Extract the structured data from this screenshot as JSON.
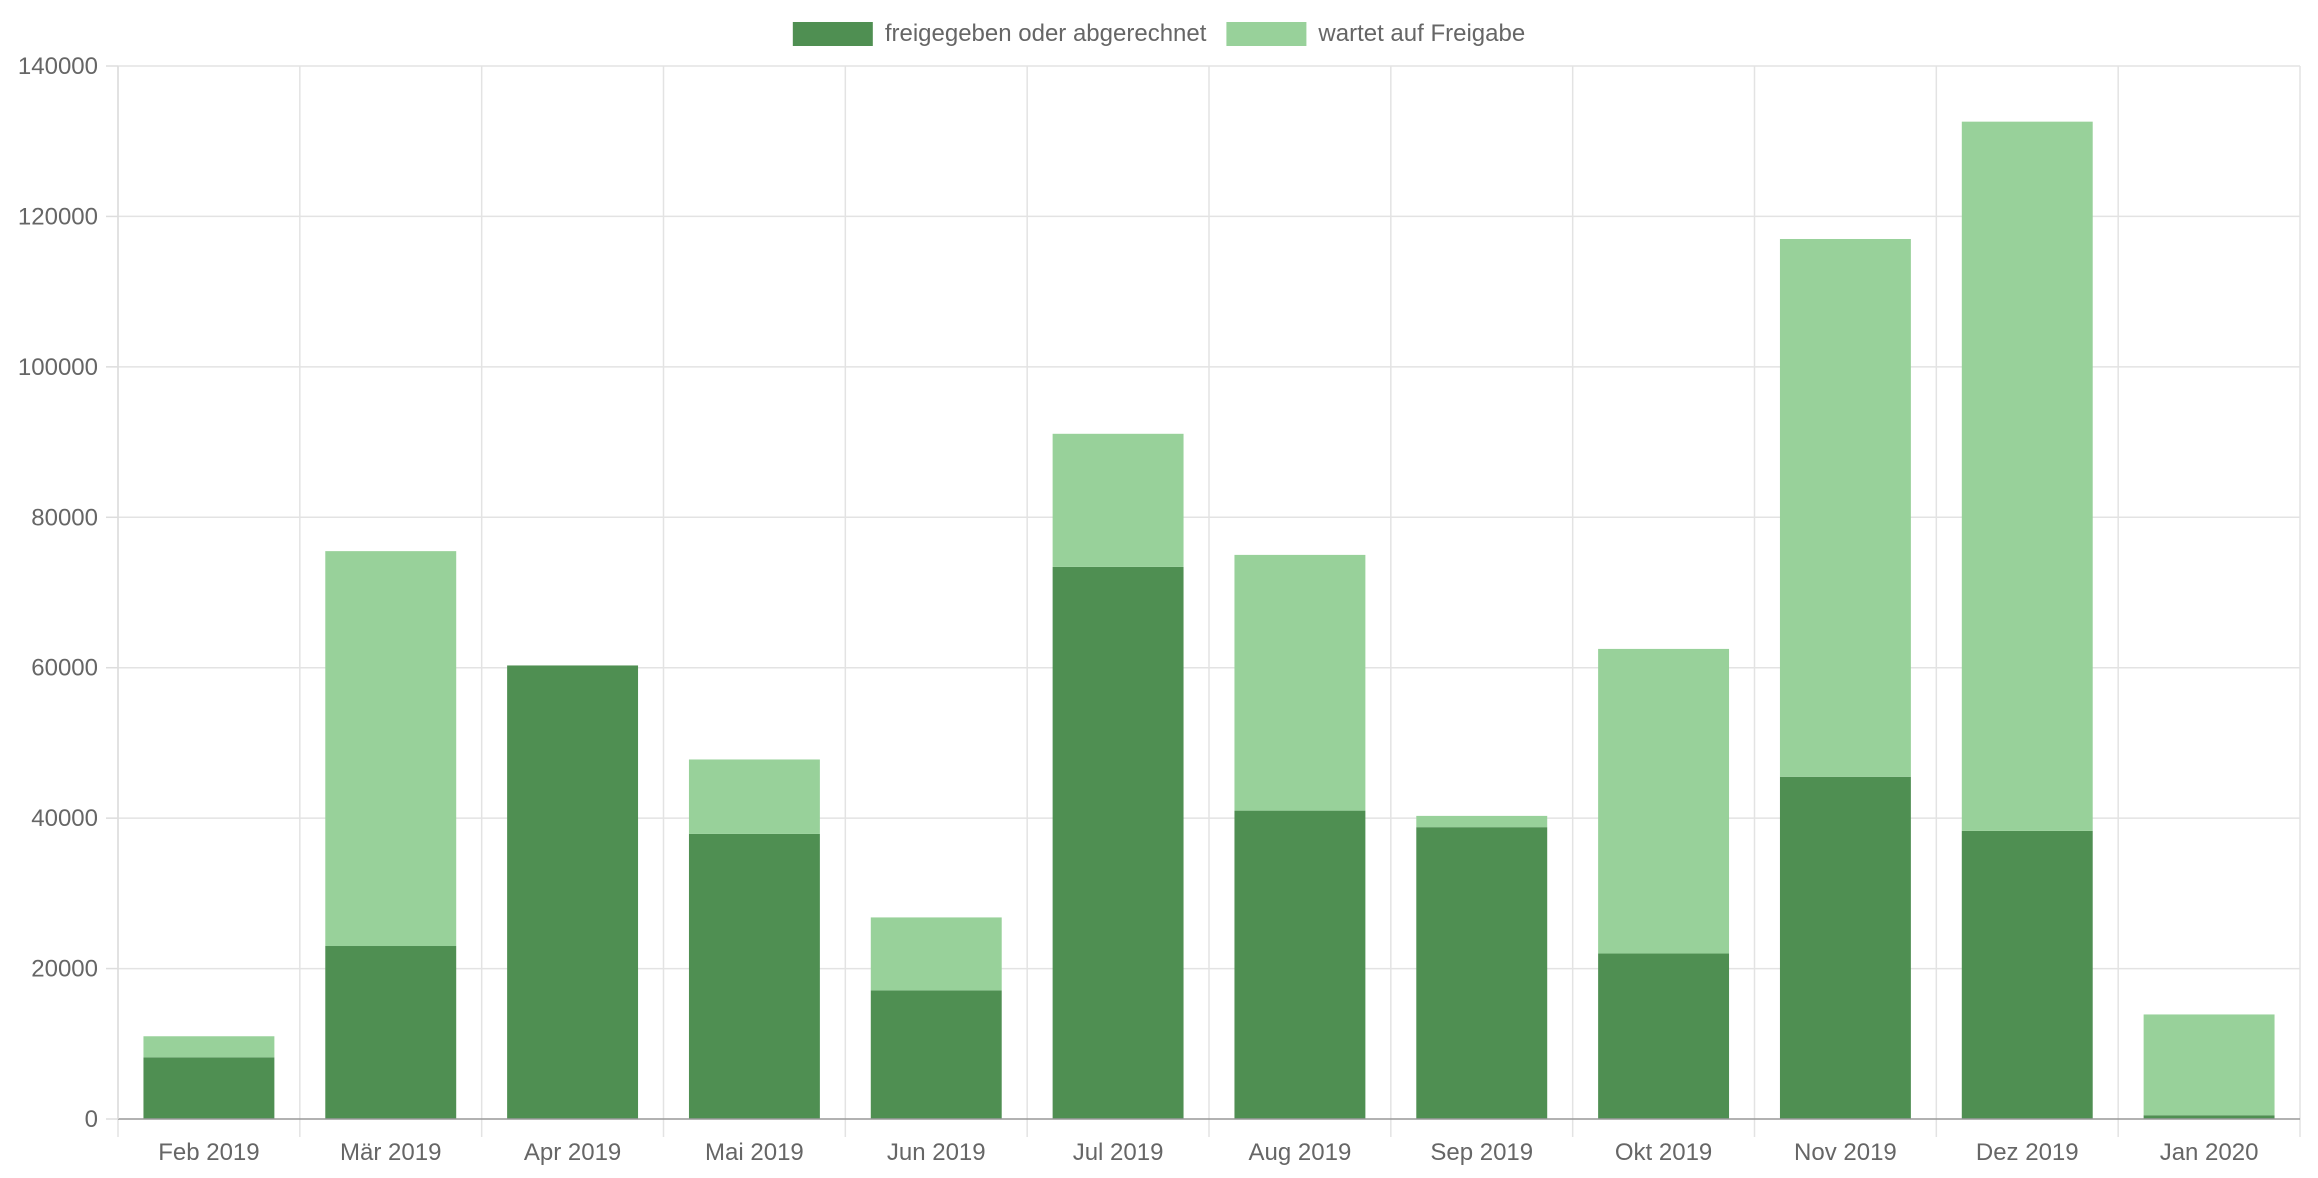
{
  "chart_data": {
    "type": "bar",
    "stacked": true,
    "categories": [
      "Feb 2019",
      "Mär 2019",
      "Apr 2019",
      "Mai 2019",
      "Jun 2019",
      "Jul 2019",
      "Aug 2019",
      "Sep 2019",
      "Okt 2019",
      "Nov 2019",
      "Dez 2019",
      "Jan 2020"
    ],
    "series": [
      {
        "name": "freigegeben oder abgerechnet",
        "color": "#4f8f52",
        "values": [
          8200,
          23000,
          60300,
          37900,
          17100,
          73400,
          41000,
          38800,
          22000,
          45500,
          38300,
          500
        ]
      },
      {
        "name": "wartet auf Freigabe",
        "color": "#98d19a",
        "values": [
          2800,
          52500,
          0,
          9900,
          9700,
          17700,
          34000,
          1500,
          40500,
          71500,
          94300,
          13400
        ]
      }
    ],
    "y_ticks": [
      "0",
      "20000",
      "40000",
      "60000",
      "80000",
      "100000",
      "120000",
      "140000"
    ],
    "ylim": [
      0,
      140000
    ],
    "grid": true,
    "legend_position": "top-center"
  }
}
